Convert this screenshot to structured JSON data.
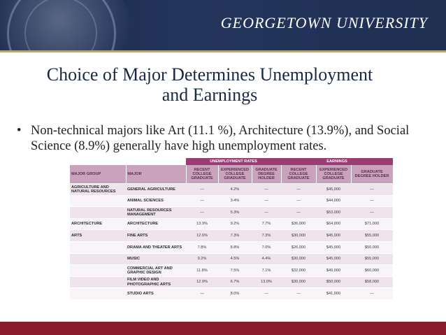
{
  "header": {
    "brand": "GEORGETOWN UNIVERSITY"
  },
  "slide": {
    "title_line1": "Choice of Major Determines Unemployment",
    "title_line2": "and Earnings",
    "bullet_symbol": "•",
    "bullet": "Non-technical majors like Art (11.1 %), Architecture (13.9%), and Social Science (8.9%) generally have high unemployment rates."
  },
  "table": {
    "group_headers": {
      "unemployment": "UNEMPLOYMENT RATES",
      "earnings": "EARNINGS"
    },
    "columns": [
      "MAJOR GROUP",
      "MAJOR",
      "RECENT COLLEGE GRADUATE",
      "EXPERIENCED COLLEGE GRADUATE",
      "GRADUATE DEGREE HOLDER",
      "RECENT COLLEGE GRADUATE",
      "EXPERIENCED COLLEGE GRADUATE",
      "GRADUATE DEGREE HOLDER"
    ],
    "rows": [
      [
        "AGRICULTURE AND NATURAL RESOURCES",
        "GENERAL AGRICULTURE",
        "—",
        "4.2%",
        "—",
        "—",
        "$45,000",
        "—"
      ],
      [
        "",
        "ANIMAL SCIENCES",
        "—",
        "3.4%",
        "—",
        "—",
        "$44,000",
        "—"
      ],
      [
        "",
        "NATURAL RESOURCES MANAGEMENT",
        "—",
        "5.3%",
        "—",
        "—",
        "$53,000",
        "—"
      ],
      [
        "ARCHITECTURE",
        "ARCHITECTURE",
        "13.9%",
        "9.2%",
        "7.7%",
        "$36,000",
        "$64,000",
        "$71,000"
      ],
      [
        "ARTS",
        "FINE ARTS",
        "12.6%",
        "7.3%",
        "7.3%",
        "$30,000",
        "$45,000",
        "$55,000"
      ],
      [
        "",
        "DRAMA AND THEATER ARTS",
        "7.8%",
        "8.8%",
        "7.0%",
        "$26,000",
        "$45,000",
        "$50,000"
      ],
      [
        "",
        "MUSIC",
        "9.2%",
        "4.5%",
        "4.4%",
        "$30,000",
        "$45,000",
        "$55,000"
      ],
      [
        "",
        "COMMERCIAL ART AND GRAPHIC DESIGN",
        "11.8%",
        "7.5%",
        "7.1%",
        "$32,000",
        "$49,000",
        "$60,000"
      ],
      [
        "",
        "FILM VIDEO AND PHOTOGRAPHIC ARTS",
        "12.9%",
        "6.7%",
        "13.0%",
        "$30,000",
        "$50,000",
        "$58,000"
      ],
      [
        "",
        "STUDIO ARTS",
        "—",
        "8.0%",
        "—",
        "—",
        "$41,000",
        "—"
      ]
    ]
  }
}
